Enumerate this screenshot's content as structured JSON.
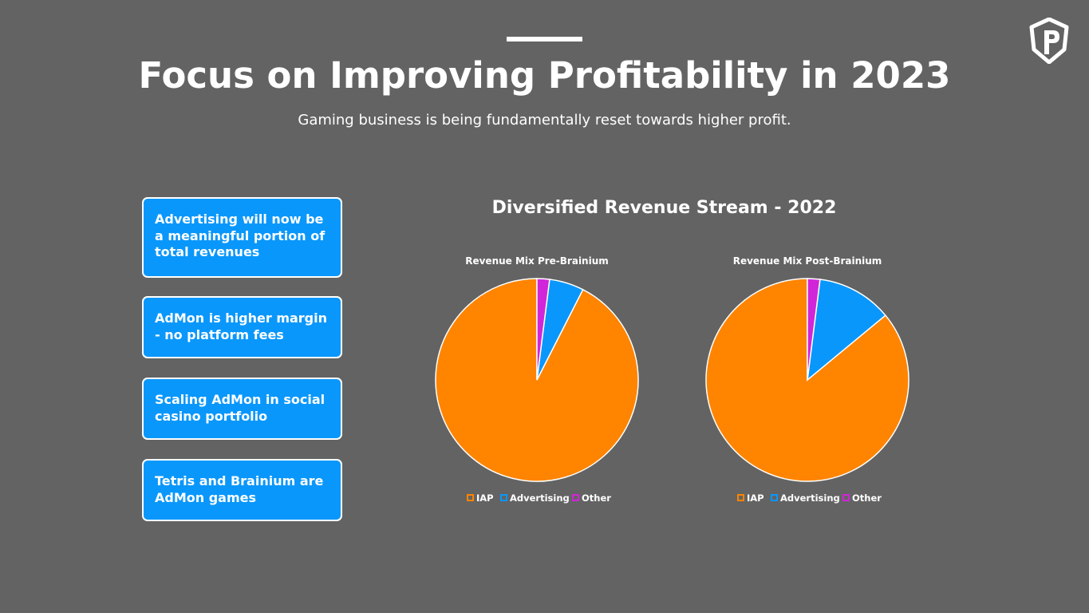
{
  "header": {
    "title": "Focus on Improving Profitability in 2023",
    "subtitle": "Gaming business is being fundamentally reset towards higher profit."
  },
  "logo": {
    "icon": "shield-p-logo-icon"
  },
  "bullets": [
    "Advertising will now be a meaningful portion of total revenues",
    "AdMon is higher margin - no platform fees",
    "Scaling AdMon in social casino portfolio",
    "Tetris and Brainium are AdMon games"
  ],
  "colors": {
    "background": "#636363",
    "box": "#0a97fb",
    "iap": "#ff8400",
    "advertising": "#0a97fb",
    "other": "#d125d9"
  },
  "chart_section_title": "Diversified Revenue Stream - 2022",
  "chart_data": [
    {
      "type": "pie",
      "title": "Revenue Mix Pre-Brainium",
      "categories": [
        "IAP",
        "Advertising",
        "Other"
      ],
      "values": [
        92.5,
        5.5,
        2.0
      ],
      "legend": "bottom"
    },
    {
      "type": "pie",
      "title": "Revenue Mix Post-Brainium",
      "categories": [
        "IAP",
        "Advertising",
        "Other"
      ],
      "values": [
        86,
        12,
        2
      ],
      "legend": "bottom"
    }
  ]
}
